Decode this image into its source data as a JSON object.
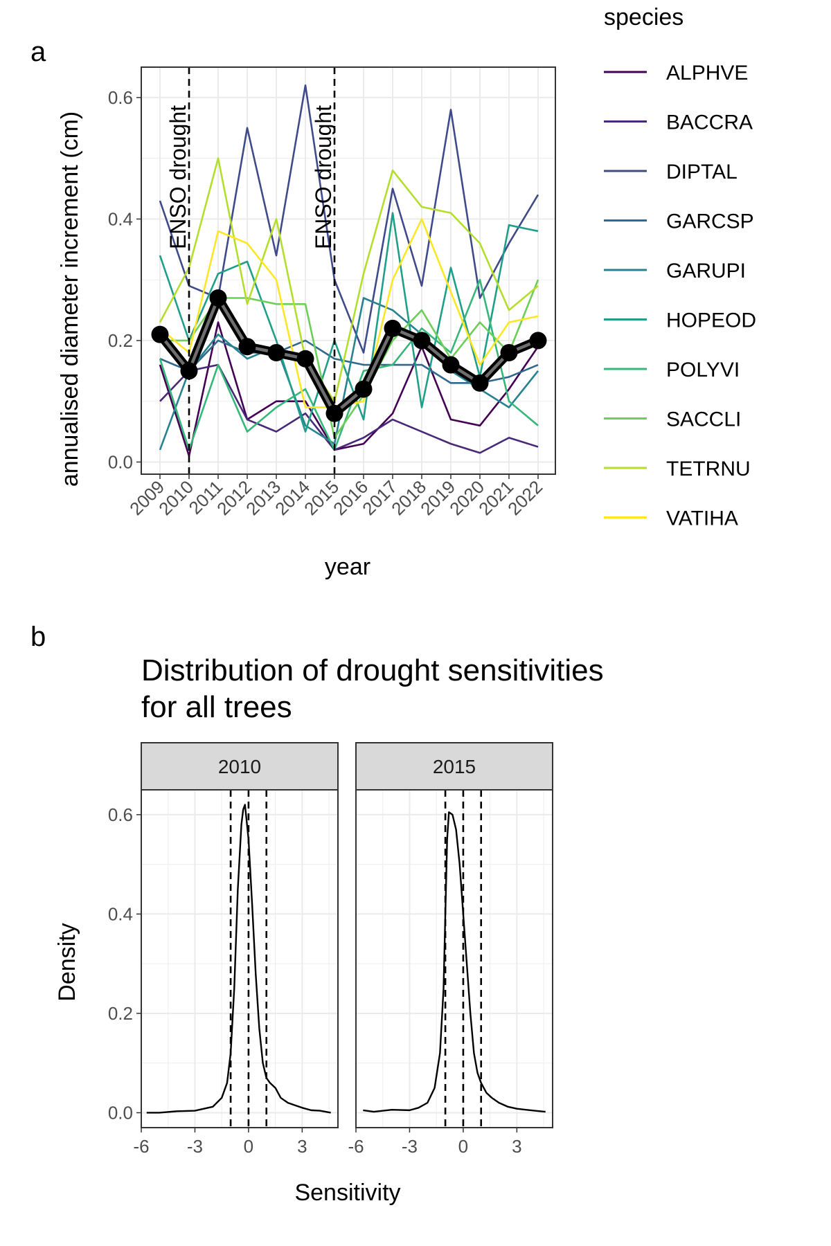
{
  "panel_labels": {
    "a": "a",
    "b": "b"
  },
  "chart_data": [
    {
      "type": "line",
      "panel": "a",
      "xlabel": "year",
      "ylabel": "annualised diameter increment (cm)",
      "categories": [
        "2009",
        "2010",
        "2011",
        "2012",
        "2013",
        "2014",
        "2015",
        "2016",
        "2017",
        "2018",
        "2019",
        "2020",
        "2021",
        "2022"
      ],
      "ylim": [
        -0.02,
        0.65
      ],
      "yticks": [
        0.0,
        0.2,
        0.4,
        0.6
      ],
      "ytick_labels": [
        "0.0",
        "0.2",
        "0.4",
        "0.6"
      ],
      "grid": true,
      "legend": {
        "title": "species",
        "placement": "right"
      },
      "annotations": [
        {
          "x": "2010",
          "text": "ENSO drought",
          "style": "dashed vertical line"
        },
        {
          "x": "2015",
          "text": "ENSO drought",
          "style": "dashed vertical line"
        }
      ],
      "series": [
        {
          "name": "ALPHVE",
          "color": "#440154",
          "values": [
            0.16,
            0.01,
            0.23,
            0.07,
            0.1,
            0.1,
            0.02,
            0.03,
            0.08,
            0.19,
            0.07,
            0.06,
            0.12,
            0.19
          ]
        },
        {
          "name": "BACCRA",
          "color": "#482878",
          "values": [
            0.1,
            0.15,
            0.16,
            0.07,
            0.05,
            0.08,
            0.02,
            0.04,
            0.07,
            0.05,
            0.03,
            0.015,
            0.04,
            0.025
          ]
        },
        {
          "name": "DIPTAL",
          "color": "#3E4A89",
          "values": [
            0.43,
            0.29,
            0.27,
            0.55,
            0.34,
            0.62,
            0.3,
            0.18,
            0.45,
            0.29,
            0.58,
            0.27,
            0.36,
            0.44
          ]
        },
        {
          "name": "GARCSP",
          "color": "#31688E",
          "values": [
            0.17,
            0.15,
            0.2,
            0.18,
            0.18,
            0.2,
            0.17,
            0.16,
            0.16,
            0.16,
            0.13,
            0.13,
            0.14,
            0.16
          ]
        },
        {
          "name": "GARUPI",
          "color": "#26828E",
          "values": [
            0.02,
            0.15,
            0.21,
            0.17,
            0.19,
            0.06,
            0.03,
            0.27,
            0.25,
            0.21,
            0.15,
            0.12,
            0.09,
            0.15
          ]
        },
        {
          "name": "HOPEOD",
          "color": "#1F9E89",
          "values": [
            0.34,
            0.2,
            0.31,
            0.33,
            0.2,
            0.05,
            0.2,
            0.07,
            0.41,
            0.09,
            0.32,
            0.14,
            0.39,
            0.38
          ]
        },
        {
          "name": "POLYVI",
          "color": "#35B779",
          "values": [
            0.17,
            0.02,
            0.16,
            0.05,
            0.09,
            0.12,
            0.02,
            0.15,
            0.16,
            0.22,
            0.18,
            0.3,
            0.1,
            0.06
          ]
        },
        {
          "name": "SACCLI",
          "color": "#6DCD59",
          "values": [
            0.2,
            0.2,
            0.27,
            0.27,
            0.26,
            0.26,
            0.04,
            0.11,
            0.2,
            0.25,
            0.17,
            0.23,
            0.18,
            0.3
          ]
        },
        {
          "name": "TETRNU",
          "color": "#B4DE2C",
          "values": [
            0.23,
            0.32,
            0.5,
            0.26,
            0.4,
            0.17,
            0.1,
            0.31,
            0.48,
            0.42,
            0.41,
            0.36,
            0.25,
            0.29
          ]
        },
        {
          "name": "VATIHA",
          "color": "#FDE725",
          "values": [
            0.22,
            0.18,
            0.38,
            0.36,
            0.3,
            0.09,
            0.09,
            0.1,
            0.3,
            0.4,
            0.28,
            0.16,
            0.23,
            0.24
          ]
        }
      ],
      "mean_series": {
        "values": [
          0.21,
          0.15,
          0.27,
          0.19,
          0.18,
          0.17,
          0.08,
          0.12,
          0.22,
          0.2,
          0.16,
          0.13,
          0.18,
          0.2
        ]
      }
    },
    {
      "type": "area",
      "panel": "b",
      "title": "Distribution of drought sensitivities",
      "title_line2": "for all trees",
      "xlabel": "Sensitivity",
      "ylabel": "Density",
      "xlim": [
        -6,
        5
      ],
      "ylim": [
        -0.03,
        0.65
      ],
      "xticks": [
        -6,
        -3,
        0,
        3
      ],
      "xtick_labels": [
        "-6",
        "-3",
        "0",
        "3"
      ],
      "yticks": [
        0.0,
        0.2,
        0.4,
        0.6
      ],
      "ytick_labels": [
        "0.0",
        "0.2",
        "0.4",
        "0.6"
      ],
      "grid": true,
      "facets": [
        {
          "label": "2010",
          "vlines": [
            -1,
            0,
            1
          ],
          "x": [
            -5.7,
            -5,
            -4,
            -3,
            -2.5,
            -2,
            -1.5,
            -1.2,
            -1.0,
            -0.8,
            -0.6,
            -0.4,
            -0.3,
            -0.2,
            0.0,
            0.2,
            0.4,
            0.6,
            0.8,
            1.0,
            1.2,
            1.5,
            1.8,
            2.2,
            2.6,
            3.0,
            3.5,
            4.0,
            4.6
          ],
          "y": [
            0.0,
            0.0,
            0.003,
            0.004,
            0.008,
            0.012,
            0.03,
            0.06,
            0.12,
            0.25,
            0.45,
            0.58,
            0.61,
            0.62,
            0.55,
            0.42,
            0.28,
            0.17,
            0.1,
            0.07,
            0.06,
            0.05,
            0.03,
            0.02,
            0.015,
            0.01,
            0.005,
            0.004,
            0.0
          ]
        },
        {
          "label": "2015",
          "vlines": [
            -1,
            0,
            1
          ],
          "x": [
            -5.6,
            -5,
            -4,
            -3,
            -2.5,
            -2,
            -1.6,
            -1.3,
            -1.1,
            -1.0,
            -0.9,
            -0.8,
            -0.6,
            -0.4,
            -0.2,
            0.0,
            0.2,
            0.4,
            0.6,
            0.8,
            1.0,
            1.3,
            1.6,
            2.0,
            2.5,
            3.0,
            3.5,
            4.0,
            4.6
          ],
          "y": [
            0.005,
            0.002,
            0.006,
            0.005,
            0.01,
            0.02,
            0.05,
            0.12,
            0.25,
            0.4,
            0.55,
            0.605,
            0.6,
            0.57,
            0.5,
            0.4,
            0.3,
            0.2,
            0.12,
            0.08,
            0.06,
            0.04,
            0.03,
            0.02,
            0.012,
            0.008,
            0.006,
            0.004,
            0.002
          ]
        }
      ]
    }
  ]
}
